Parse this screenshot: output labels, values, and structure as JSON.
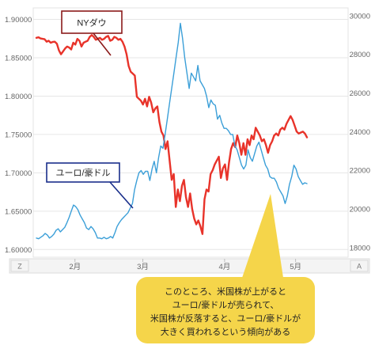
{
  "chart_data": {
    "type": "line",
    "x_axis": {
      "tick_labels": [
        "2月",
        "3月",
        "4月",
        "5月"
      ],
      "left_button": "Z",
      "right_button": "A"
    },
    "left_axis": {
      "range": [
        1.59,
        1.915
      ],
      "ticks": [
        "1.60000",
        "1.65000",
        "1.70000",
        "1.75000",
        "1.80000",
        "1.85000",
        "1.90000"
      ],
      "tick_values": [
        1.6,
        1.65,
        1.7,
        1.75,
        1.8,
        1.85,
        1.9
      ]
    },
    "right_axis": {
      "range": [
        17500,
        30400
      ],
      "ticks": [
        "18000",
        "20000",
        "22000",
        "24000",
        "26000",
        "28000",
        "30000"
      ],
      "tick_values": [
        18000,
        20000,
        22000,
        24000,
        26000,
        28000,
        30000
      ]
    },
    "grid": "horizontal",
    "series": [
      {
        "name": "NYダウ",
        "axis": "right",
        "color": "#e8332a",
        "values": [
          28850,
          28880,
          28820,
          28800,
          28780,
          28650,
          28700,
          28600,
          28640,
          28650,
          28550,
          28200,
          28000,
          28150,
          28300,
          28400,
          28350,
          28250,
          28600,
          28500,
          28800,
          28700,
          28400,
          28600,
          28650,
          28700,
          28900,
          29000,
          28900,
          28750,
          28800,
          28850,
          28750,
          28800,
          28900,
          28950,
          28700,
          28750,
          28900,
          28850,
          28750,
          28800,
          28650,
          28400,
          28000,
          27400,
          27100,
          27000,
          26900,
          25800,
          25700,
          25600,
          25400,
          25700,
          25300,
          25800,
          25500,
          25000,
          25200,
          25300,
          24500,
          24000,
          23800,
          23100,
          23500,
          22500,
          21500,
          21800,
          20100,
          21000,
          20400,
          21200,
          21500,
          20600,
          20100,
          20800,
          20000,
          19500,
          19200,
          19400,
          19100,
          18700,
          20500,
          21000,
          20900,
          21800,
          22000,
          22300,
          22500,
          22700,
          21600,
          22100,
          22300,
          21500,
          22400,
          23100,
          23400,
          23200,
          23800,
          23400,
          22800,
          23400,
          22800,
          23600,
          23300,
          23800,
          23600,
          24200,
          24000,
          23800,
          23500,
          23600,
          23300,
          22900,
          23300,
          23500,
          23800,
          23900,
          23800,
          24100,
          24200,
          24100,
          24400,
          24600,
          24800,
          24600,
          24300,
          24000,
          23900,
          23950,
          24000,
          23900,
          23700
        ]
      },
      {
        "name": "ユーロ/豪ドル",
        "axis": "left",
        "color": "#3b9fd8",
        "values": [
          1.615,
          1.614,
          1.616,
          1.618,
          1.621,
          1.619,
          1.615,
          1.617,
          1.62,
          1.625,
          1.627,
          1.623,
          1.626,
          1.629,
          1.635,
          1.642,
          1.65,
          1.658,
          1.656,
          1.652,
          1.645,
          1.64,
          1.635,
          1.628,
          1.626,
          1.63,
          1.627,
          1.622,
          1.615,
          1.615,
          1.614,
          1.616,
          1.614,
          1.615,
          1.617,
          1.615,
          1.622,
          1.63,
          1.635,
          1.639,
          1.642,
          1.645,
          1.648,
          1.654,
          1.66,
          1.678,
          1.69,
          1.7,
          1.703,
          1.698,
          1.702,
          1.702,
          1.69,
          1.705,
          1.715,
          1.7,
          1.72,
          1.735,
          1.732,
          1.75,
          1.77,
          1.79,
          1.81,
          1.83,
          1.85,
          1.87,
          1.895,
          1.875,
          1.85,
          1.83,
          1.81,
          1.83,
          1.825,
          1.82,
          1.84,
          1.82,
          1.815,
          1.81,
          1.8,
          1.785,
          1.795,
          1.79,
          1.788,
          1.77,
          1.775,
          1.765,
          1.758,
          1.758,
          1.755,
          1.75,
          1.75,
          1.735,
          1.73,
          1.72,
          1.71,
          1.705,
          1.71,
          1.73,
          1.72,
          1.715,
          1.725,
          1.735,
          1.74,
          1.73,
          1.72,
          1.71,
          1.705,
          1.695,
          1.693,
          1.693,
          1.688,
          1.68,
          1.675,
          1.67,
          1.66,
          1.67,
          1.685,
          1.695,
          1.71,
          1.705,
          1.695,
          1.69,
          1.685,
          1.687,
          1.686
        ]
      }
    ],
    "annotations": {
      "ny_dow_label": "NYダウ",
      "eurusd_label": "ユーロ/豪ドル",
      "note_lines": [
        "このところ、米国株が上がると",
        "ユーロ/豪ドルが売られて、",
        "米国株が反落すると、ユーロ/豪ドルが",
        "大きく買われるという傾向がある"
      ]
    }
  },
  "colors": {
    "grid": "#e6e6e6",
    "callout_border": "#8b1a1a",
    "callout_border_blue": "#1a2f8b",
    "note_fill": "#f5d54a"
  }
}
